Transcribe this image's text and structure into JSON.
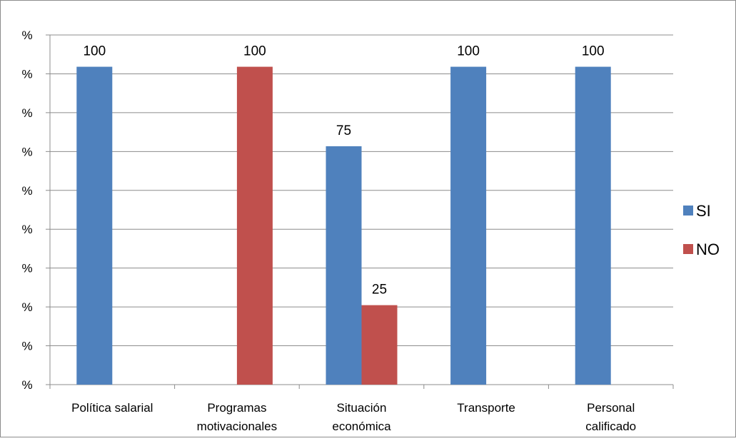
{
  "chart_data": {
    "type": "bar",
    "title": "",
    "xlabel": "",
    "ylabel": "",
    "ylim": [
      0,
      110
    ],
    "grid": true,
    "legend_position": "right",
    "y_tick_label": "%",
    "y_tick_count": 10,
    "categories": [
      [
        "Política salarial"
      ],
      [
        "Programas",
        "motivacionales"
      ],
      [
        "Situación",
        "económica"
      ],
      [
        "Transporte"
      ],
      [
        "Personal",
        "calificado"
      ]
    ],
    "series": [
      {
        "name": "SI",
        "color": "#4F81BD",
        "values": [
          100,
          0,
          75,
          100,
          100
        ]
      },
      {
        "name": "NO",
        "color": "#C0504D",
        "values": [
          0,
          100,
          25,
          0,
          0
        ]
      }
    ],
    "data_labels": [
      [
        "100",
        "",
        "75",
        "100",
        "100"
      ],
      [
        "",
        "100",
        "25",
        "",
        ""
      ]
    ]
  }
}
